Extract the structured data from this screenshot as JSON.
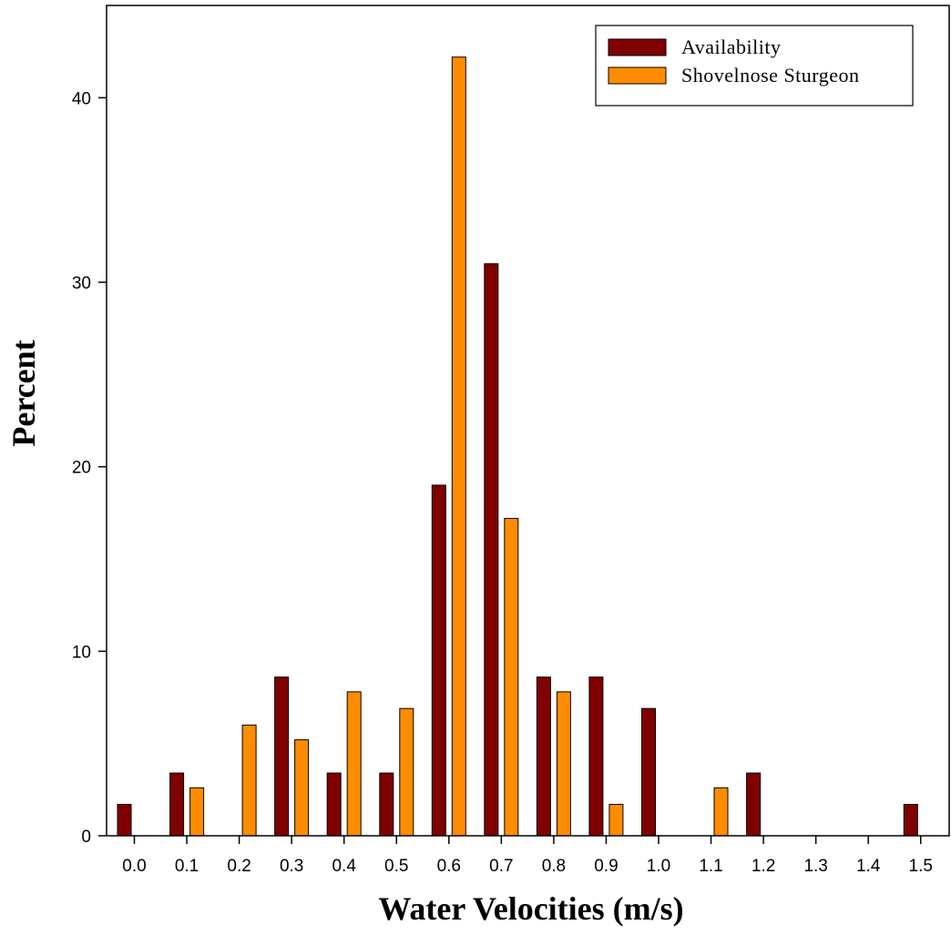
{
  "chart_data": {
    "type": "bar",
    "xlabel": "Water Velocities (m/s)",
    "ylabel": "Percent",
    "categories": [
      "0.0",
      "0.1",
      "0.2",
      "0.3",
      "0.4",
      "0.5",
      "0.6",
      "0.7",
      "0.8",
      "0.9",
      "1.0",
      "1.1",
      "1.2",
      "1.3",
      "1.4",
      "1.5"
    ],
    "ylim": [
      0,
      45
    ],
    "yticks": [
      0,
      10,
      20,
      30,
      40
    ],
    "grid": false,
    "legend_position": "top-right",
    "series": [
      {
        "name": "Availability",
        "color": "#800000",
        "values": [
          1.7,
          3.4,
          0,
          8.6,
          3.4,
          3.4,
          19.0,
          31.0,
          8.6,
          8.6,
          6.9,
          0,
          3.4,
          0,
          0,
          1.7
        ]
      },
      {
        "name": "Shovelnose Sturgeon",
        "color": "#ff8c00",
        "values": [
          0,
          2.6,
          6.0,
          5.2,
          7.8,
          6.9,
          42.2,
          17.2,
          7.8,
          1.7,
          0,
          2.6,
          0,
          0,
          0,
          0
        ]
      }
    ]
  }
}
